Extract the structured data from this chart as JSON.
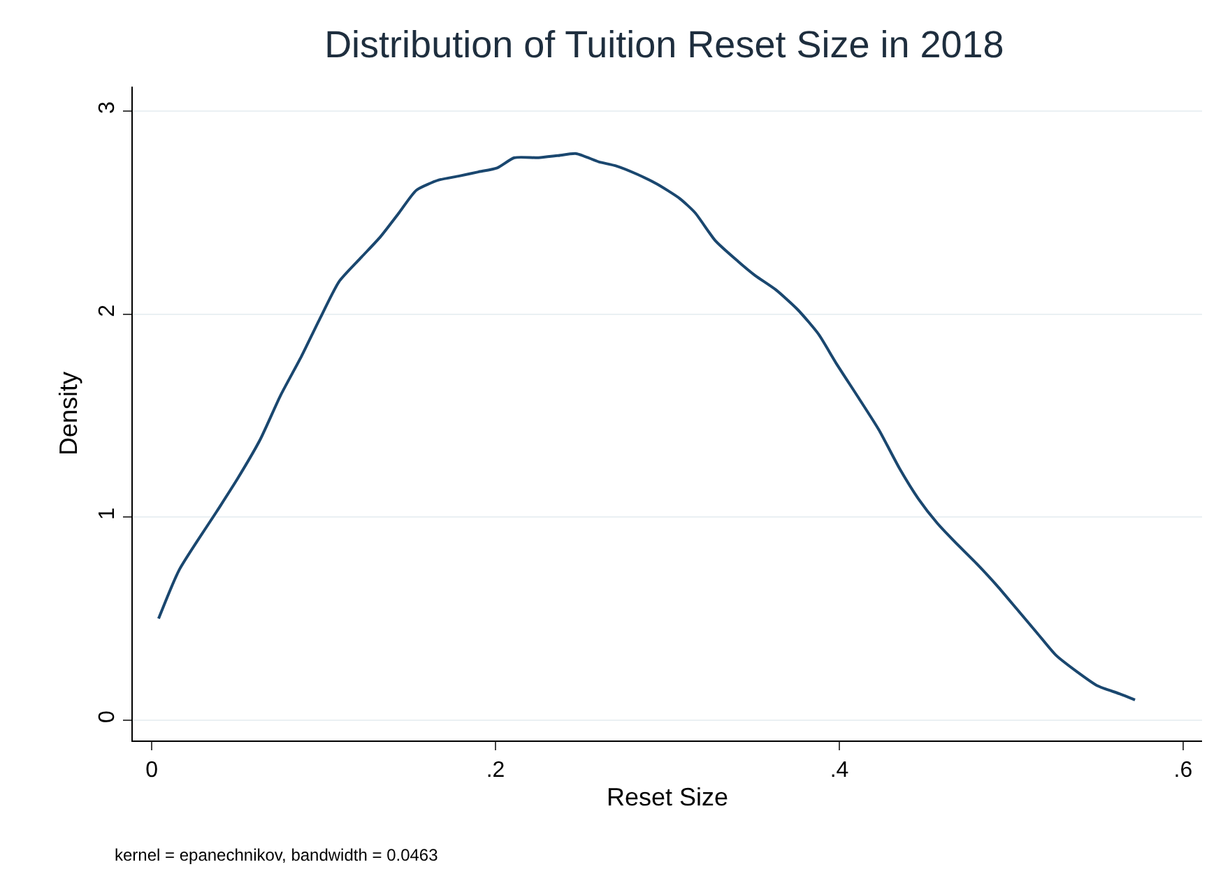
{
  "chart_data": {
    "type": "line",
    "title": "Distribution of Tuition Reset Size in 2018",
    "xlabel": "Reset Size",
    "ylabel": "Density",
    "annotations": [
      "kernel = epanechnikov, bandwidth = 0.0463"
    ],
    "x": [
      0.004,
      0.016,
      0.038,
      0.05,
      0.063,
      0.075,
      0.087,
      0.098,
      0.109,
      0.122,
      0.133,
      0.144,
      0.154,
      0.167,
      0.179,
      0.19,
      0.201,
      0.211,
      0.225,
      0.236,
      0.247,
      0.26,
      0.27,
      0.282,
      0.294,
      0.307,
      0.316,
      0.328,
      0.341,
      0.351,
      0.363,
      0.376,
      0.388,
      0.398,
      0.411,
      0.423,
      0.435,
      0.446,
      0.457,
      0.467,
      0.48,
      0.492,
      0.503,
      0.515,
      0.526,
      0.538,
      0.55,
      0.563,
      0.572
    ],
    "series": [
      {
        "color": "#1a476f",
        "values": [
          0.5,
          0.74,
          1.03,
          1.19,
          1.38,
          1.6,
          1.79,
          1.98,
          2.16,
          2.28,
          2.38,
          2.5,
          2.61,
          2.66,
          2.68,
          2.7,
          2.72,
          2.77,
          2.77,
          2.78,
          2.79,
          2.75,
          2.73,
          2.69,
          2.64,
          2.57,
          2.5,
          2.36,
          2.26,
          2.19,
          2.12,
          2.02,
          1.9,
          1.76,
          1.59,
          1.43,
          1.24,
          1.09,
          0.97,
          0.88,
          0.77,
          0.66,
          0.55,
          0.43,
          0.32,
          0.24,
          0.17,
          0.13,
          0.1
        ]
      }
    ],
    "xlim": [
      -0.011,
      0.611
    ],
    "xticks": [
      0,
      {
        "value": 0.2,
        "label": ".2"
      },
      {
        "value": 0.4,
        "label": ".4"
      },
      {
        "value": 0.6,
        "label": ".6"
      }
    ],
    "ylim": [
      -0.1,
      3.12
    ],
    "yticks": [
      0,
      1,
      2,
      3
    ],
    "grid": "y",
    "legend": false,
    "marker": "none",
    "line_style": "solid"
  }
}
